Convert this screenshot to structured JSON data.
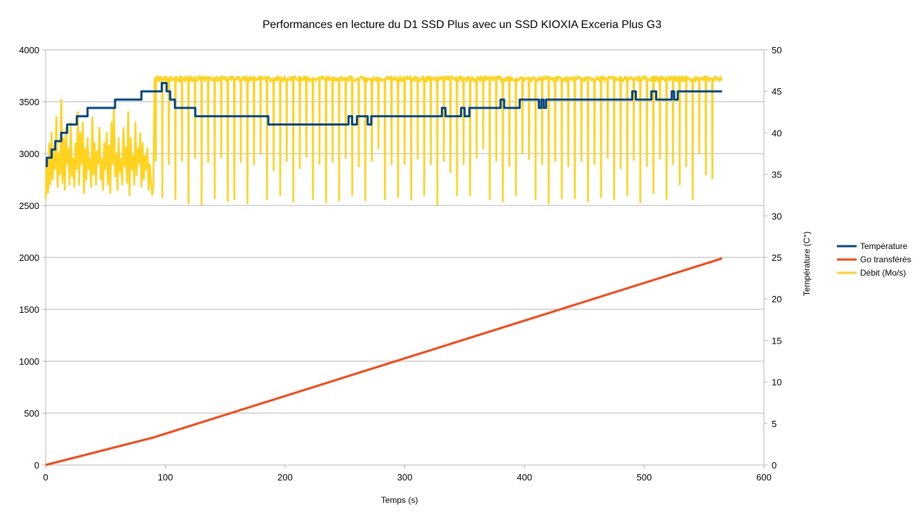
{
  "chart_data": {
    "type": "line",
    "title": "Performances en lecture du D1 SSD Plus avec un SSD KIOXIA Exceria Plus G3",
    "xlabel": "Temps (s)",
    "ylabel": "",
    "y2label": "Température (C°)",
    "xlim": [
      0,
      600
    ],
    "ylim": [
      0,
      4000
    ],
    "y2lim": [
      0,
      50
    ],
    "xticks": [
      "0",
      "100",
      "200",
      "300",
      "400",
      "500",
      "600"
    ],
    "yticks": [
      "0",
      "500",
      "1000",
      "1500",
      "2000",
      "2500",
      "3000",
      "3500",
      "4000"
    ],
    "y2ticks": [
      "0",
      "5",
      "10",
      "15",
      "20",
      "25",
      "30",
      "35",
      "40",
      "45",
      "50"
    ],
    "grid": true,
    "legend_position": "right",
    "series": [
      {
        "name": "Température",
        "axis": "right",
        "color": "#004586",
        "style": "step",
        "points": [
          [
            0,
            36
          ],
          [
            1,
            37
          ],
          [
            5,
            38
          ],
          [
            8,
            39
          ],
          [
            13,
            40
          ],
          [
            18,
            41
          ],
          [
            26,
            42
          ],
          [
            35,
            43
          ],
          [
            58,
            44
          ],
          [
            80,
            45
          ],
          [
            97,
            46
          ],
          [
            101,
            45
          ],
          [
            104,
            44
          ],
          [
            108,
            43
          ],
          [
            125,
            42
          ],
          [
            186,
            41
          ],
          [
            253,
            42
          ],
          [
            256,
            41
          ],
          [
            260,
            42
          ],
          [
            269,
            41
          ],
          [
            272,
            42
          ],
          [
            331,
            43
          ],
          [
            334,
            42
          ],
          [
            347,
            43
          ],
          [
            350,
            42
          ],
          [
            354,
            43
          ],
          [
            380,
            44
          ],
          [
            383,
            43
          ],
          [
            396,
            44
          ],
          [
            412,
            43
          ],
          [
            414,
            44
          ],
          [
            416,
            43
          ],
          [
            418,
            44
          ],
          [
            490,
            45
          ],
          [
            493,
            44
          ],
          [
            506,
            45
          ],
          [
            510,
            44
          ],
          [
            523,
            45
          ],
          [
            525,
            44
          ],
          [
            528,
            45
          ],
          [
            565,
            45
          ]
        ]
      },
      {
        "name": "Go transférés",
        "axis": "left",
        "color": "#ff420e",
        "points": [
          [
            0,
            0
          ],
          [
            90,
            265
          ],
          [
            565,
            1990
          ]
        ]
      },
      {
        "name": "Débit (Mo/s)",
        "axis": "left",
        "color": "#ffd320",
        "ramp_up_values": [
          2560,
          2950,
          2620,
          3100,
          2700,
          3200,
          2750,
          3050,
          2850,
          3350,
          2680,
          3000,
          2800,
          3520,
          2720,
          3150,
          2650,
          3250,
          2900,
          3050,
          2700,
          3300,
          2780,
          2950,
          2680,
          3100,
          2850,
          3400,
          2700,
          3200,
          2900,
          3300,
          2620,
          3050,
          2750,
          3150,
          2850,
          2950,
          2680,
          3350,
          2800,
          3100,
          2700,
          3020,
          2900,
          3250,
          2750,
          2950,
          2650,
          3100,
          2850,
          3200,
          2700,
          3080,
          2620,
          3300,
          2900,
          3450,
          2780,
          3000,
          2650,
          3150,
          2820,
          2950,
          2700,
          3250,
          2880,
          3060,
          2720,
          3400,
          2600,
          3150,
          2850,
          2980,
          2700,
          3300,
          2790,
          3050,
          2900,
          3200,
          2680,
          3100,
          2750,
          2980,
          2850,
          3050,
          2650,
          2900,
          2720,
          2600,
          2680
        ],
        "plateau_value": 3720,
        "dip_start": 92,
        "dip_interval": 5.47,
        "dip_values": [
          2930,
          2580,
          2900,
          2560,
          2930,
          2520,
          2960,
          2510,
          2920,
          2570,
          2960,
          2540,
          2560,
          2920,
          2520,
          2900,
          3000,
          2560,
          2840,
          2600,
          2930,
          2540,
          2860,
          2970,
          2560,
          2900,
          2530,
          2920,
          2550,
          2960,
          2600,
          2880,
          2550,
          2930,
          3050,
          2560,
          2900,
          2580,
          2900,
          2560,
          2950,
          2600,
          2900,
          2510,
          2930,
          2820,
          2600,
          2900,
          2600,
          2960,
          3050,
          2560,
          2930,
          2540,
          2880,
          2600,
          3000,
          2950,
          2560,
          2900,
          2520,
          2930,
          2570,
          2880,
          2570,
          2930,
          2540,
          2900,
          2580,
          2960,
          2560,
          2860,
          2600,
          2940,
          2530,
          2880,
          2620,
          2950,
          2560,
          2900,
          2700,
          2880,
          2560,
          3000,
          2800,
          2760
        ]
      }
    ]
  }
}
